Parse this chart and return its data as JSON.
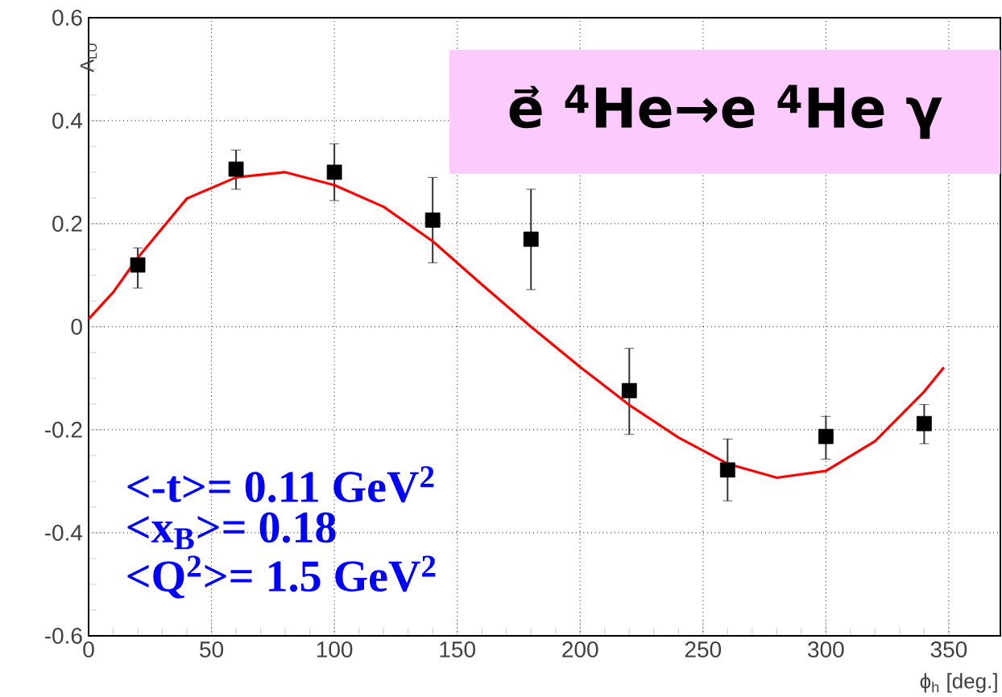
{
  "chart_data": {
    "type": "scatter",
    "title": "e⃗ $^{4}$He→e $^{4}$He γ",
    "xlabel": "ϕ$_{h}$ [deg.]",
    "ylabel": "A$_{LU}$",
    "xlim": [
      0,
      371
    ],
    "ylim": [
      -0.6,
      0.6
    ],
    "xticks": [
      0,
      50,
      100,
      150,
      200,
      250,
      300,
      350
    ],
    "yticks": [
      -0.6,
      -0.4,
      -0.2,
      0,
      0.2,
      0.4,
      0.6
    ],
    "grid": true,
    "series": [
      {
        "color": "#000000",
        "marker": "square",
        "x": [
          20,
          60,
          100,
          140,
          180,
          220,
          260,
          300,
          340
        ],
        "values": [
          0.12,
          0.306,
          0.3,
          0.207,
          0.17,
          -0.124,
          -0.278,
          -0.213,
          -0.188
        ],
        "errors": [
          [
            0.075,
            0.153
          ],
          [
            0.267,
            0.343
          ],
          [
            0.245,
            0.355
          ],
          [
            0.124,
            0.29
          ],
          [
            0.072,
            0.267
          ],
          [
            -0.209,
            -0.042
          ],
          [
            -0.338,
            -0.218
          ],
          [
            -0.257,
            -0.174
          ],
          [
            -0.227,
            -0.151
          ]
        ]
      },
      {
        "type": "line",
        "color": "#ff0000",
        "marker": "none",
        "line_style": "solid",
        "x": [
          0,
          10,
          20,
          40,
          60,
          80,
          100,
          120,
          140,
          160,
          180,
          200,
          220,
          240,
          260,
          280,
          300,
          320,
          340,
          348
        ],
        "values": [
          0.015,
          0.067,
          0.134,
          0.249,
          0.29,
          0.3,
          0.275,
          0.233,
          0.166,
          0.082,
          0.0,
          -0.078,
          -0.152,
          -0.215,
          -0.266,
          -0.293,
          -0.28,
          -0.222,
          -0.126,
          -0.079
        ]
      }
    ],
    "annotations": [
      "<-t>= 0.11 GeV$^{2}$",
      "<x$_{B}$>= 0.18",
      "<Q$^{2}$>= 1.5 GeV$^{2}$"
    ]
  }
}
